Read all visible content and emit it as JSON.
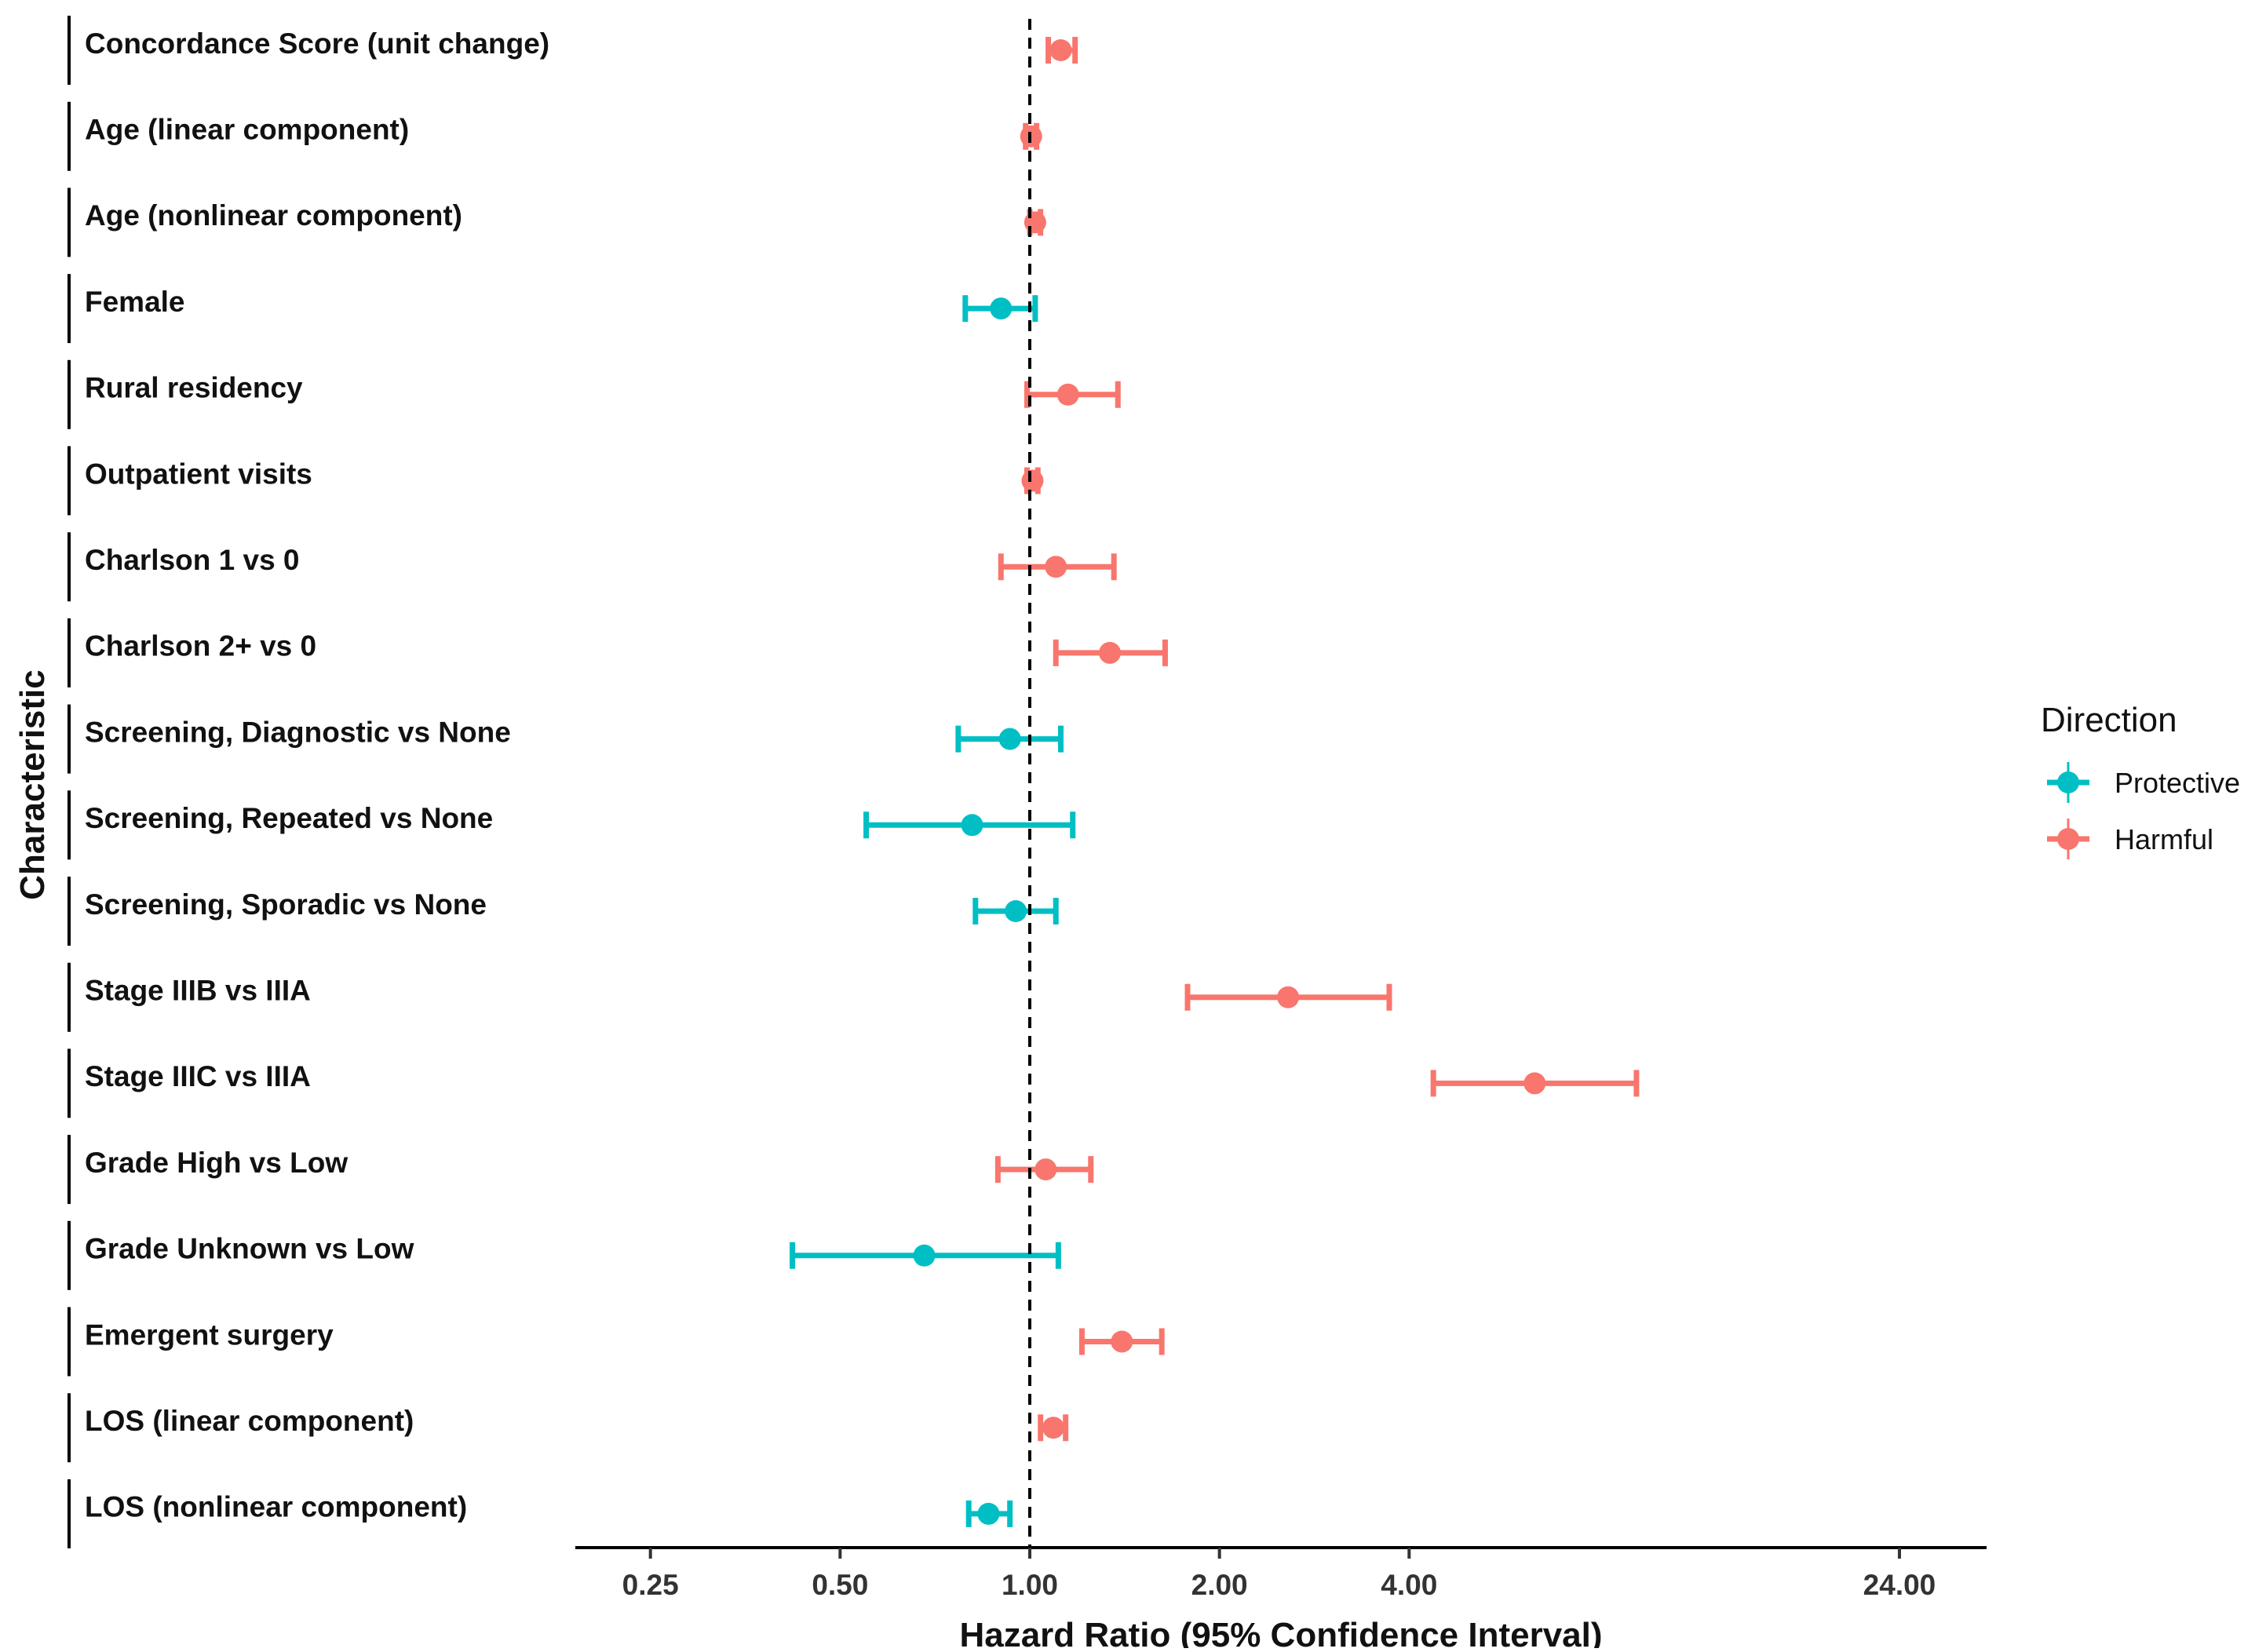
{
  "chart_data": {
    "type": "forest",
    "title": "",
    "xlabel": "Hazard Ratio (95% Confidence Interval)",
    "ylabel": "Characteristic",
    "x_scale": "log2",
    "xlim": [
      0.19,
      33
    ],
    "x_ticks": [
      {
        "value": 0.25,
        "label": "0.25"
      },
      {
        "value": 0.5,
        "label": "0.50"
      },
      {
        "value": 1,
        "label": "1.00"
      },
      {
        "value": 2,
        "label": "2.00"
      },
      {
        "value": 4,
        "label": "4.00"
      },
      {
        "value": 24,
        "label": "24.00"
      }
    ],
    "reference_line": 1,
    "grid": false,
    "legend": {
      "title": "Direction",
      "position": "right",
      "entries": [
        {
          "name": "Protective",
          "color": "#00bfc4"
        },
        {
          "name": "Harmful",
          "color": "#f8766d"
        }
      ]
    },
    "rows": [
      {
        "label": "Concordance Score (unit change)",
        "hr": 1.12,
        "lo": 1.07,
        "hi": 1.18,
        "direction": "Harmful"
      },
      {
        "label": "Age (linear component)",
        "hr": 1.005,
        "lo": 0.985,
        "hi": 1.025,
        "direction": "Harmful"
      },
      {
        "label": "Age (nonlinear component)",
        "hr": 1.02,
        "lo": 1.0,
        "hi": 1.04,
        "direction": "Harmful"
      },
      {
        "label": "Female",
        "hr": 0.9,
        "lo": 0.79,
        "hi": 1.02,
        "direction": "Protective"
      },
      {
        "label": "Rural residency",
        "hr": 1.15,
        "lo": 0.99,
        "hi": 1.38,
        "direction": "Harmful"
      },
      {
        "label": "Outpatient visits",
        "hr": 1.01,
        "lo": 0.99,
        "hi": 1.03,
        "direction": "Harmful"
      },
      {
        "label": "Charlson 1 vs 0",
        "hr": 1.1,
        "lo": 0.9,
        "hi": 1.36,
        "direction": "Harmful"
      },
      {
        "label": "Charlson 2+ vs 0",
        "hr": 1.34,
        "lo": 1.1,
        "hi": 1.64,
        "direction": "Harmful"
      },
      {
        "label": "Screening, Diagnostic vs None",
        "hr": 0.93,
        "lo": 0.77,
        "hi": 1.12,
        "direction": "Protective"
      },
      {
        "label": "Screening, Repeated vs None",
        "hr": 0.81,
        "lo": 0.55,
        "hi": 1.17,
        "direction": "Protective"
      },
      {
        "label": "Screening, Sporadic vs None",
        "hr": 0.95,
        "lo": 0.82,
        "hi": 1.1,
        "direction": "Protective"
      },
      {
        "label": "Stage IIIB vs IIIA",
        "hr": 2.57,
        "lo": 1.78,
        "hi": 3.72,
        "direction": "Harmful"
      },
      {
        "label": "Stage IIIC vs IIIA",
        "hr": 6.33,
        "lo": 4.37,
        "hi": 9.18,
        "direction": "Harmful"
      },
      {
        "label": "Grade High vs Low",
        "hr": 1.06,
        "lo": 0.89,
        "hi": 1.25,
        "direction": "Harmful"
      },
      {
        "label": "Grade Unknown vs Low",
        "hr": 0.68,
        "lo": 0.42,
        "hi": 1.11,
        "direction": "Protective"
      },
      {
        "label": "Emergent surgery",
        "hr": 1.4,
        "lo": 1.21,
        "hi": 1.62,
        "direction": "Harmful"
      },
      {
        "label": "LOS (linear component)",
        "hr": 1.09,
        "lo": 1.04,
        "hi": 1.14,
        "direction": "Harmful"
      },
      {
        "label": "LOS (nonlinear component)",
        "hr": 0.86,
        "lo": 0.8,
        "hi": 0.93,
        "direction": "Protective"
      }
    ]
  }
}
